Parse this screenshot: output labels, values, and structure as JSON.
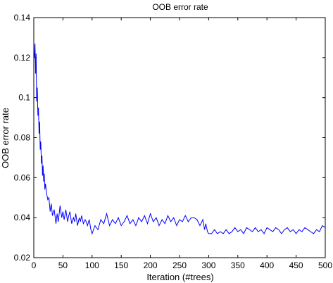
{
  "chart_data": {
    "type": "line",
    "title": "OOB error rate",
    "xlabel": "Iteration (#trees)",
    "ylabel": "OOB error rate",
    "xlim": [
      0,
      500
    ],
    "ylim": [
      0.02,
      0.14
    ],
    "xticks": [
      0,
      50,
      100,
      150,
      200,
      250,
      300,
      350,
      400,
      450,
      500
    ],
    "yticks": [
      0.02,
      0.04,
      0.06,
      0.08,
      0.1,
      0.12,
      0.14
    ],
    "xtick_labels": [
      "0",
      "50",
      "100",
      "150",
      "200",
      "250",
      "300",
      "350",
      "400",
      "450",
      "500"
    ],
    "ytick_labels": [
      "0.02",
      "0.04",
      "0.06",
      "0.08",
      "0.1",
      "0.12",
      "0.14"
    ],
    "grid": false,
    "line_color": "#0000ff",
    "series": [
      {
        "x": [
          1,
          2,
          3,
          4,
          5,
          6,
          7,
          8,
          9,
          10,
          11,
          12,
          13,
          14,
          15,
          16,
          17,
          18,
          19,
          20,
          22,
          24,
          26,
          28,
          30,
          32,
          35,
          38,
          40,
          42,
          45,
          48,
          50,
          52,
          55,
          58,
          60,
          62,
          65,
          68,
          70,
          72,
          75,
          78,
          80,
          82,
          85,
          88,
          90,
          92,
          95,
          98,
          100,
          105,
          110,
          115,
          120,
          125,
          130,
          135,
          140,
          145,
          150,
          155,
          160,
          165,
          170,
          175,
          180,
          185,
          190,
          195,
          200,
          205,
          210,
          215,
          220,
          225,
          230,
          235,
          240,
          245,
          250,
          255,
          260,
          265,
          270,
          275,
          280,
          285,
          290,
          293,
          295,
          298,
          300,
          305,
          310,
          315,
          320,
          325,
          330,
          335,
          340,
          345,
          350,
          355,
          360,
          365,
          370,
          375,
          380,
          385,
          390,
          395,
          400,
          405,
          410,
          415,
          420,
          425,
          430,
          435,
          440,
          445,
          450,
          455,
          460,
          465,
          470,
          475,
          480,
          485,
          490,
          495,
          500
        ],
        "y": [
          0.12,
          0.127,
          0.112,
          0.122,
          0.098,
          0.105,
          0.091,
          0.095,
          0.082,
          0.088,
          0.074,
          0.078,
          0.067,
          0.071,
          0.061,
          0.066,
          0.058,
          0.062,
          0.054,
          0.057,
          0.052,
          0.049,
          0.05,
          0.043,
          0.047,
          0.041,
          0.044,
          0.037,
          0.042,
          0.038,
          0.046,
          0.04,
          0.043,
          0.039,
          0.044,
          0.038,
          0.041,
          0.043,
          0.037,
          0.04,
          0.038,
          0.042,
          0.036,
          0.04,
          0.038,
          0.041,
          0.037,
          0.039,
          0.038,
          0.036,
          0.039,
          0.034,
          0.032,
          0.036,
          0.034,
          0.039,
          0.037,
          0.042,
          0.036,
          0.039,
          0.037,
          0.04,
          0.036,
          0.038,
          0.041,
          0.037,
          0.039,
          0.036,
          0.04,
          0.038,
          0.041,
          0.037,
          0.042,
          0.038,
          0.04,
          0.036,
          0.039,
          0.037,
          0.041,
          0.038,
          0.04,
          0.036,
          0.039,
          0.038,
          0.041,
          0.038,
          0.04,
          0.04,
          0.039,
          0.036,
          0.039,
          0.034,
          0.037,
          0.033,
          0.032,
          0.032,
          0.034,
          0.032,
          0.033,
          0.032,
          0.034,
          0.032,
          0.033,
          0.035,
          0.033,
          0.034,
          0.032,
          0.035,
          0.034,
          0.033,
          0.035,
          0.033,
          0.034,
          0.032,
          0.035,
          0.034,
          0.033,
          0.035,
          0.034,
          0.032,
          0.034,
          0.035,
          0.033,
          0.034,
          0.032,
          0.034,
          0.033,
          0.035,
          0.034,
          0.033,
          0.032,
          0.034,
          0.033,
          0.036,
          0.035
        ]
      }
    ]
  }
}
